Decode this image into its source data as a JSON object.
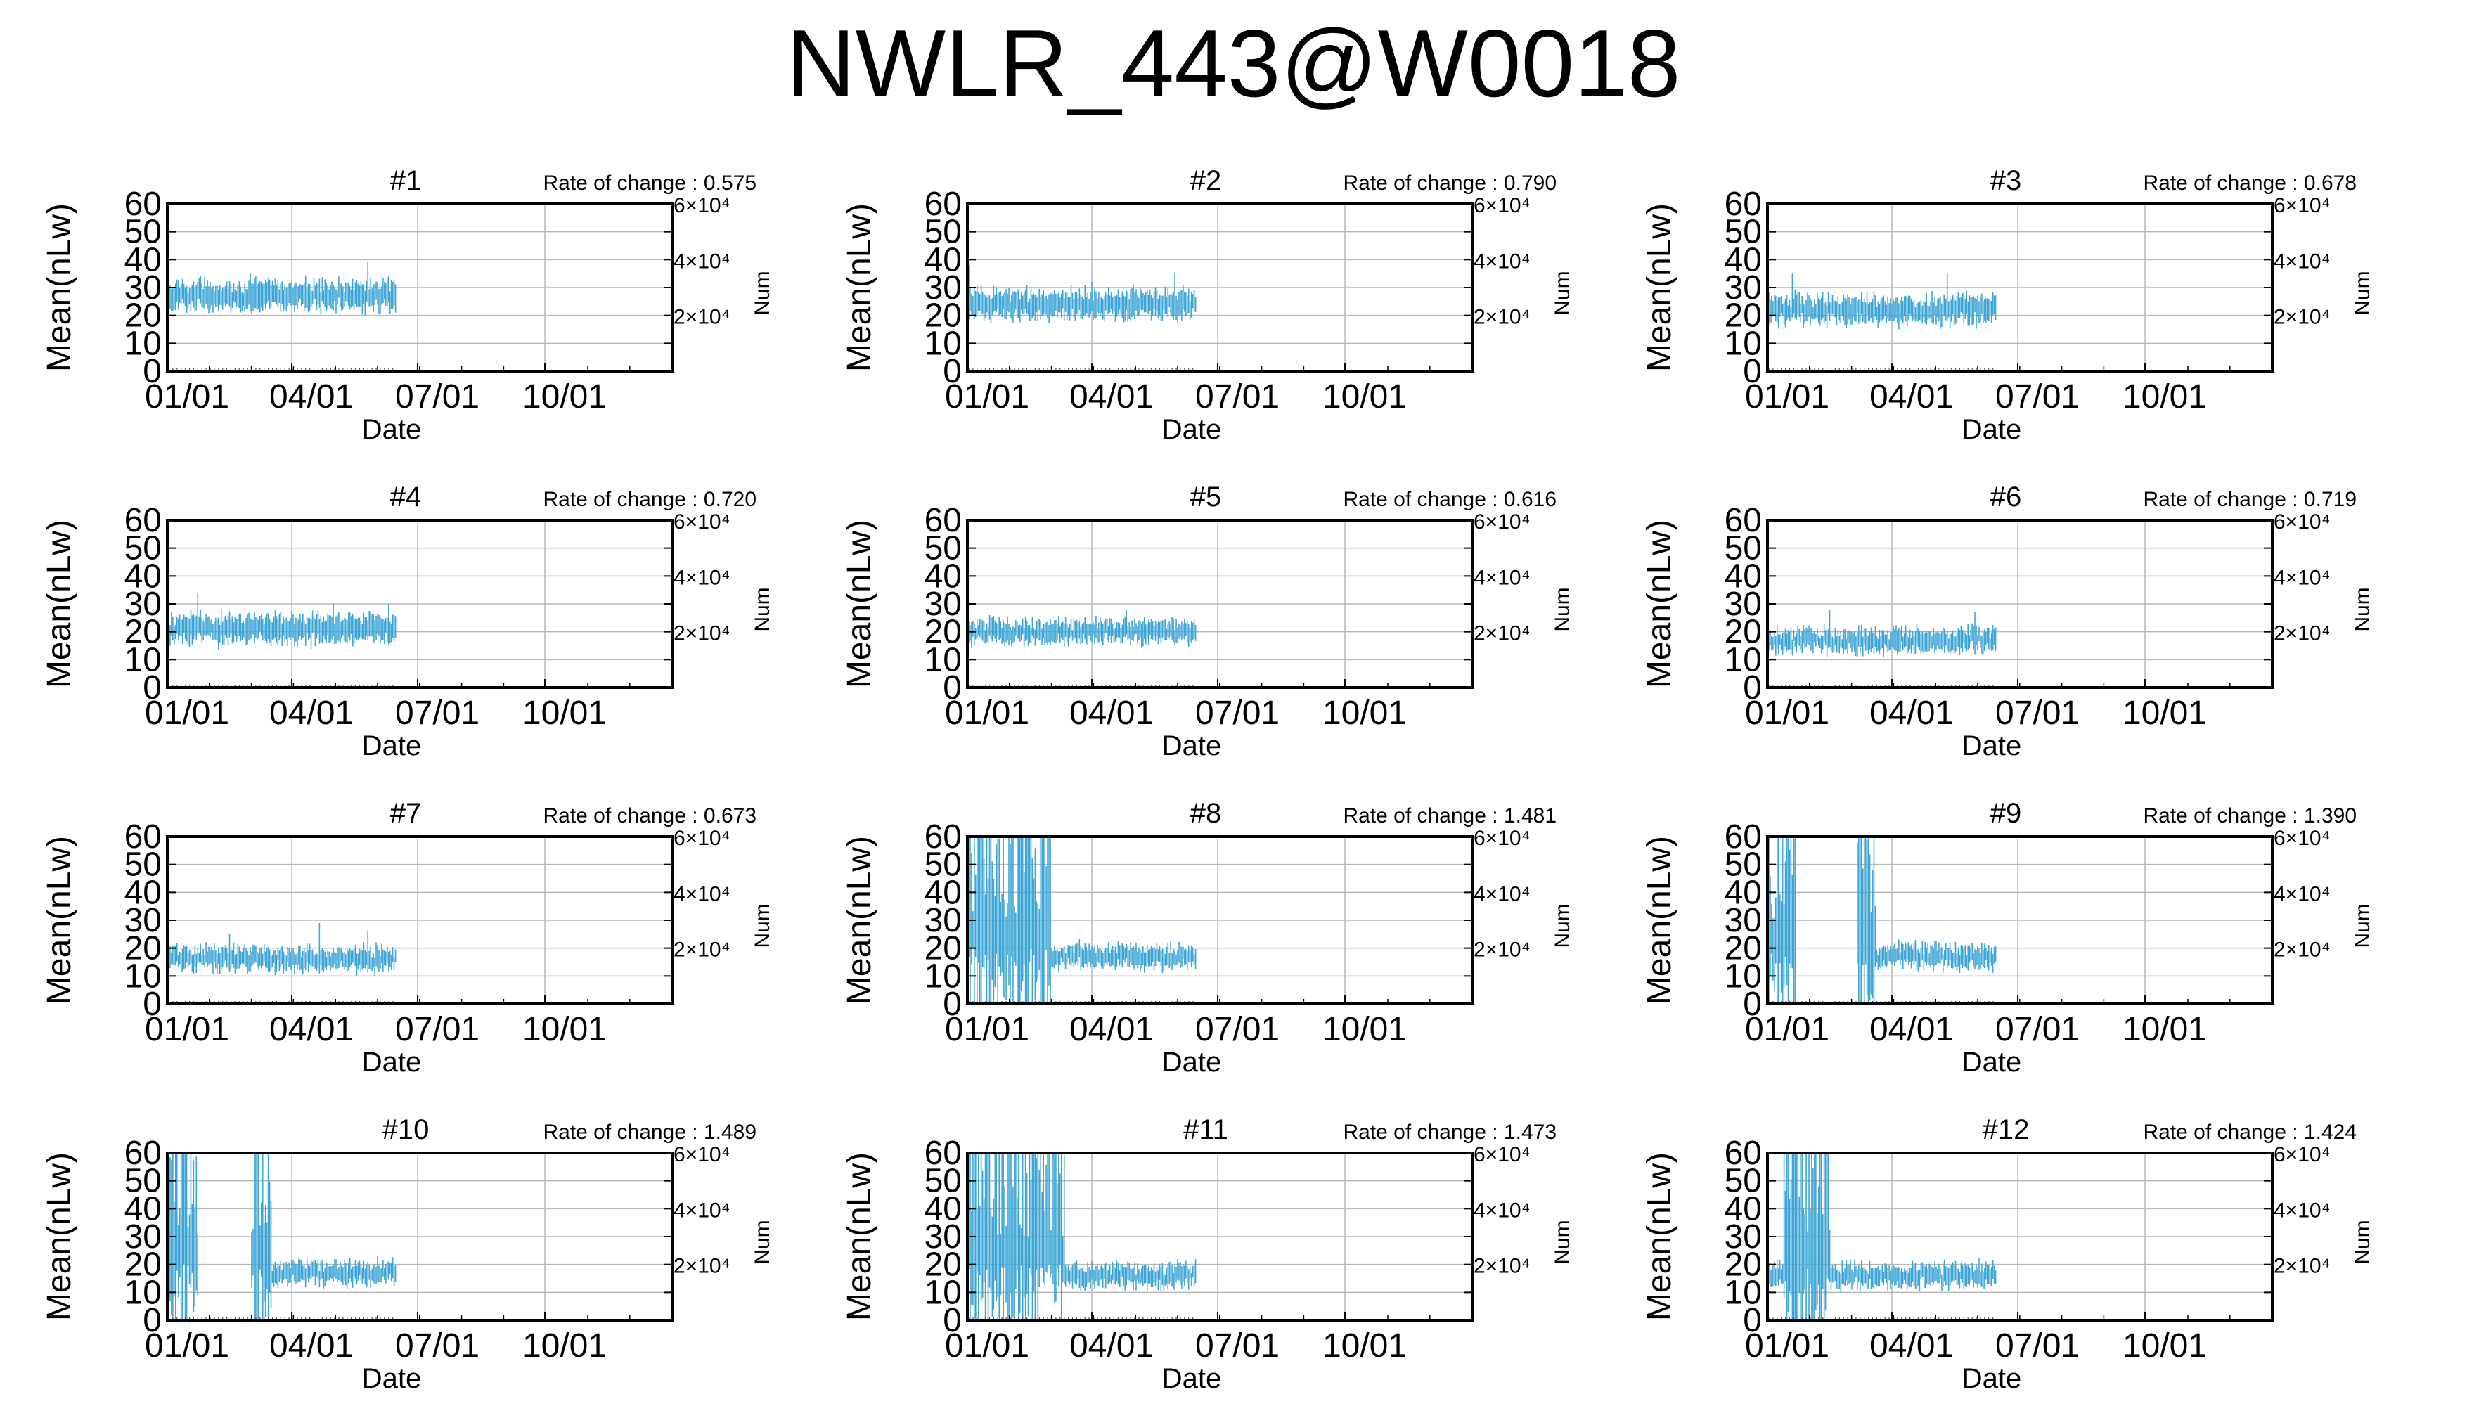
{
  "title": "NWLR_443@W0018",
  "axis": {
    "ylabel": "Mean(nLw)",
    "xlabel": "Date",
    "y2label": "Num",
    "yticks": [
      0,
      10,
      20,
      30,
      40,
      50,
      60
    ],
    "xticks": [
      "01/01",
      "04/01",
      "07/01",
      "10/01"
    ],
    "y2ticks": [
      "2×10⁴",
      "4×10⁴",
      "6×10⁴"
    ],
    "rate_prefix": "Rate of change : "
  },
  "colors": {
    "series": "#3ea6d6",
    "grid": "#b8b8b8",
    "frame": "#000000"
  },
  "chart_data": [
    {
      "type": "line",
      "title": "#1",
      "rate": "0.575",
      "xlabel": "Date",
      "ylabel": "Mean(nLw)",
      "y2label": "Num",
      "ylim": [
        0,
        60
      ],
      "y2lim": [
        0,
        60000
      ],
      "xlim": [
        "01/01",
        "12/31"
      ],
      "grid": true,
      "series": [
        {
          "values_by_day_range": [
            1,
            165
          ],
          "mean": 27,
          "spread": 5,
          "spikes": [
            [
              1,
              41
            ],
            [
              60,
              35
            ],
            [
              145,
              39
            ]
          ],
          "style": "vertical-bars"
        }
      ]
    },
    {
      "type": "line",
      "title": "#2",
      "rate": "0.790",
      "xlabel": "Date",
      "ylabel": "Mean(nLw)",
      "y2label": "Num",
      "ylim": [
        0,
        60
      ],
      "y2lim": [
        0,
        60000
      ],
      "xlim": [
        "01/01",
        "12/31"
      ],
      "grid": true,
      "series": [
        {
          "values_by_day_range": [
            1,
            165
          ],
          "mean": 24,
          "spread": 5,
          "spikes": [
            [
              1,
              38
            ],
            [
              90,
              32
            ],
            [
              150,
              35
            ]
          ],
          "style": "vertical-bars"
        }
      ]
    },
    {
      "type": "line",
      "title": "#3",
      "rate": "0.678",
      "xlabel": "Date",
      "ylabel": "Mean(nLw)",
      "y2label": "Num",
      "ylim": [
        0,
        60
      ],
      "y2lim": [
        0,
        60000
      ],
      "xlim": [
        "01/01",
        "12/31"
      ],
      "grid": true,
      "series": [
        {
          "values_by_day_range": [
            1,
            165
          ],
          "mean": 22,
          "spread": 5,
          "spikes": [
            [
              18,
              35
            ],
            [
              130,
              35
            ]
          ],
          "style": "vertical-bars"
        }
      ]
    },
    {
      "type": "line",
      "title": "#4",
      "rate": "0.720",
      "xlabel": "Date",
      "ylabel": "Mean(nLw)",
      "y2label": "Num",
      "ylim": [
        0,
        60
      ],
      "y2lim": [
        0,
        60000
      ],
      "xlim": [
        "01/01",
        "12/31"
      ],
      "grid": true,
      "series": [
        {
          "values_by_day_range": [
            1,
            165
          ],
          "mean": 21,
          "spread": 5,
          "spikes": [
            [
              22,
              34
            ],
            [
              120,
              30
            ],
            [
              160,
              30
            ]
          ],
          "style": "vertical-bars"
        }
      ]
    },
    {
      "type": "line",
      "title": "#5",
      "rate": "0.616",
      "xlabel": "Date",
      "ylabel": "Mean(nLw)",
      "y2label": "Num",
      "ylim": [
        0,
        60
      ],
      "y2lim": [
        0,
        60000
      ],
      "xlim": [
        "01/01",
        "12/31"
      ],
      "grid": true,
      "series": [
        {
          "values_by_day_range": [
            1,
            165
          ],
          "mean": 20,
          "spread": 4,
          "spikes": [
            [
              115,
              28
            ]
          ],
          "style": "vertical-bars"
        }
      ]
    },
    {
      "type": "line",
      "title": "#6",
      "rate": "0.719",
      "xlabel": "Date",
      "ylabel": "Mean(nLw)",
      "y2label": "Num",
      "ylim": [
        0,
        60
      ],
      "y2lim": [
        0,
        60000
      ],
      "xlim": [
        "01/01",
        "12/31"
      ],
      "grid": true,
      "series": [
        {
          "values_by_day_range": [
            1,
            165
          ],
          "mean": 17,
          "spread": 4,
          "spikes": [
            [
              45,
              28
            ],
            [
              150,
              27
            ]
          ],
          "style": "vertical-bars"
        }
      ]
    },
    {
      "type": "line",
      "title": "#7",
      "rate": "0.673",
      "xlabel": "Date",
      "ylabel": "Mean(nLw)",
      "y2label": "Num",
      "ylim": [
        0,
        60
      ],
      "y2lim": [
        0,
        60000
      ],
      "xlim": [
        "01/01",
        "12/31"
      ],
      "grid": true,
      "series": [
        {
          "values_by_day_range": [
            1,
            165
          ],
          "mean": 16,
          "spread": 4,
          "spikes": [
            [
              45,
              25
            ],
            [
              110,
              29
            ],
            [
              145,
              26
            ]
          ],
          "style": "vertical-bars"
        }
      ]
    },
    {
      "type": "line",
      "title": "#8",
      "rate": "1.481",
      "xlabel": "Date",
      "ylabel": "Mean(nLw)",
      "y2label": "Num",
      "ylim": [
        0,
        60
      ],
      "y2lim": [
        0,
        60000
      ],
      "xlim": [
        "01/01",
        "12/31"
      ],
      "grid": true,
      "series": [
        {
          "values_by_day_range": [
            1,
            165
          ],
          "mean": 17,
          "spread": 4,
          "noisy_day_range": [
            1,
            60
          ],
          "noisy_max": 60,
          "spikes": [
            [
              145,
              22
            ]
          ],
          "style": "vertical-bars"
        }
      ]
    },
    {
      "type": "line",
      "title": "#9",
      "rate": "1.390",
      "xlabel": "Date",
      "ylabel": "Mean(nLw)",
      "y2label": "Num",
      "ylim": [
        0,
        60
      ],
      "y2lim": [
        0,
        60000
      ],
      "xlim": [
        "01/01",
        "12/31"
      ],
      "grid": true,
      "series": [
        {
          "values_by_day_range": [
            1,
            165
          ],
          "mean": 17,
          "spread": 4,
          "noisy_day_range": [
            1,
            20
          ],
          "gap_day_range": [
            21,
            64
          ],
          "second_noisy_range": [
            65,
            78
          ],
          "noisy_max": 60,
          "style": "vertical-bars"
        }
      ]
    },
    {
      "type": "line",
      "title": "#10",
      "rate": "1.489",
      "xlabel": "Date",
      "ylabel": "Mean(nLw)",
      "y2label": "Num",
      "ylim": [
        0,
        60
      ],
      "y2lim": [
        0,
        60000
      ],
      "xlim": [
        "01/01",
        "12/31"
      ],
      "grid": true,
      "series": [
        {
          "values_by_day_range": [
            1,
            165
          ],
          "mean": 17,
          "spread": 4,
          "noisy_day_range": [
            1,
            22
          ],
          "gap_day_range": [
            23,
            60
          ],
          "second_noisy_range": [
            61,
            75
          ],
          "noisy_max": 60,
          "style": "vertical-bars"
        }
      ]
    },
    {
      "type": "line",
      "title": "#11",
      "rate": "1.473",
      "xlabel": "Date",
      "ylabel": "Mean(nLw)",
      "y2label": "Num",
      "ylim": [
        0,
        60
      ],
      "y2lim": [
        0,
        60000
      ],
      "xlim": [
        "01/01",
        "12/31"
      ],
      "grid": true,
      "series": [
        {
          "values_by_day_range": [
            1,
            165
          ],
          "mean": 16,
          "spread": 4,
          "noisy_day_range": [
            1,
            70
          ],
          "noisy_max": 60,
          "style": "vertical-bars"
        }
      ]
    },
    {
      "type": "line",
      "title": "#12",
      "rate": "1.424",
      "xlabel": "Date",
      "ylabel": "Mean(nLw)",
      "y2label": "Num",
      "ylim": [
        0,
        60
      ],
      "y2lim": [
        0,
        60000
      ],
      "xlim": [
        "01/01",
        "12/31"
      ],
      "grid": true,
      "series": [
        {
          "values_by_day_range": [
            1,
            165
          ],
          "mean": 16,
          "spread": 4,
          "noisy_day_range": [
            12,
            45
          ],
          "noisy_max": 60,
          "style": "vertical-bars"
        }
      ]
    }
  ]
}
